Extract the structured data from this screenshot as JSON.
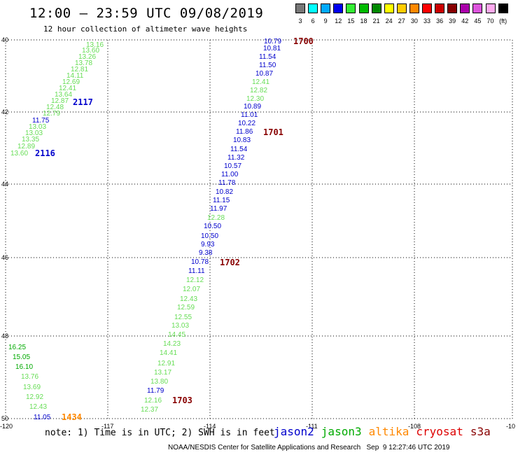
{
  "header": {
    "title": "12:00 – 23:59 UTC 09/08/2019",
    "subtitle": "12 hour collection of altimeter wave heights"
  },
  "color_scale": {
    "unit": "(ft)",
    "bins": [
      {
        "label": "3",
        "color": "#777777"
      },
      {
        "label": "6",
        "color": "#00ffff"
      },
      {
        "label": "9",
        "color": "#00aaff"
      },
      {
        "label": "12",
        "color": "#0000ee"
      },
      {
        "label": "15",
        "color": "#33ee33"
      },
      {
        "label": "18",
        "color": "#00bb00"
      },
      {
        "label": "21",
        "color": "#008800"
      },
      {
        "label": "24",
        "color": "#ffff00"
      },
      {
        "label": "27",
        "color": "#ffcc00"
      },
      {
        "label": "30",
        "color": "#ff8800"
      },
      {
        "label": "33",
        "color": "#ff0000"
      },
      {
        "label": "36",
        "color": "#cc0000"
      },
      {
        "label": "39",
        "color": "#880000"
      },
      {
        "label": "42",
        "color": "#aa00aa"
      },
      {
        "label": "45",
        "color": "#dd55dd"
      },
      {
        "label": "70",
        "color": "#ffaaee"
      },
      {
        "label": "",
        "color": "#000000"
      }
    ]
  },
  "map": {
    "lon_ticks": [
      "-120",
      "-117",
      "-114",
      "-111",
      "-108",
      "-10"
    ],
    "lat_ticks": [
      "40",
      "42",
      "44",
      "46",
      "48",
      "50"
    ]
  },
  "satellite_tracks": {
    "colors": {
      "blue": "#0000cc",
      "green": "#66dd55",
      "dgreen": "#00aa00",
      "red": "#880000",
      "orange": "#ff8800"
    },
    "points": [
      {
        "v": "13.16",
        "c": "green"
      },
      {
        "v": "13.60",
        "c": "green"
      },
      {
        "v": "13.26",
        "c": "green"
      },
      {
        "v": "13.78",
        "c": "green"
      },
      {
        "v": "12.81",
        "c": "green"
      },
      {
        "v": "14.11",
        "c": "green"
      },
      {
        "v": "12.69",
        "c": "green"
      },
      {
        "v": "12.41",
        "c": "green"
      },
      {
        "v": "13.64",
        "c": "green"
      },
      {
        "v": "12.87",
        "c": "green"
      },
      {
        "v": "12.48",
        "c": "green"
      },
      {
        "v": "12.79",
        "c": "green"
      },
      {
        "v": "11.75",
        "c": "blue"
      },
      {
        "v": "13.03",
        "c": "green"
      },
      {
        "v": "13.03",
        "c": "green"
      },
      {
        "v": "13.35",
        "c": "green"
      },
      {
        "v": "12.89",
        "c": "green"
      },
      {
        "v": "13.60",
        "c": "green"
      },
      {
        "v": "10.79",
        "c": "blue"
      },
      {
        "v": "10.81",
        "c": "blue"
      },
      {
        "v": "11.54",
        "c": "blue"
      },
      {
        "v": "11.50",
        "c": "blue"
      },
      {
        "v": "10.87",
        "c": "blue"
      },
      {
        "v": "12.41",
        "c": "green"
      },
      {
        "v": "12.82",
        "c": "green"
      },
      {
        "v": "12.30",
        "c": "green"
      },
      {
        "v": "10.89",
        "c": "blue"
      },
      {
        "v": "11.01",
        "c": "blue"
      },
      {
        "v": "10.22",
        "c": "blue"
      },
      {
        "v": "11.86",
        "c": "blue"
      },
      {
        "v": "10.83",
        "c": "blue"
      },
      {
        "v": "11.54",
        "c": "blue"
      },
      {
        "v": "11.32",
        "c": "blue"
      },
      {
        "v": "10.57",
        "c": "blue"
      },
      {
        "v": "11.00",
        "c": "blue"
      },
      {
        "v": "11.78",
        "c": "blue"
      },
      {
        "v": "10.82",
        "c": "blue"
      },
      {
        "v": "11.15",
        "c": "blue"
      },
      {
        "v": "11.97",
        "c": "blue"
      },
      {
        "v": "12.28",
        "c": "green"
      },
      {
        "v": "10.50",
        "c": "blue"
      },
      {
        "v": "10.50",
        "c": "blue"
      },
      {
        "v": "9.93",
        "c": "blue"
      },
      {
        "v": "9.38",
        "c": "blue"
      },
      {
        "v": "10.78",
        "c": "blue"
      },
      {
        "v": "11.11",
        "c": "blue"
      },
      {
        "v": "12.12",
        "c": "green"
      },
      {
        "v": "12.07",
        "c": "green"
      },
      {
        "v": "12.43",
        "c": "green"
      },
      {
        "v": "12.59",
        "c": "green"
      },
      {
        "v": "12.55",
        "c": "green"
      },
      {
        "v": "13.03",
        "c": "green"
      },
      {
        "v": "14.45",
        "c": "green"
      },
      {
        "v": "14.23",
        "c": "green"
      },
      {
        "v": "14.41",
        "c": "green"
      },
      {
        "v": "12.91",
        "c": "green"
      },
      {
        "v": "13.17",
        "c": "green"
      },
      {
        "v": "13.80",
        "c": "green"
      },
      {
        "v": "11.79",
        "c": "blue"
      },
      {
        "v": "12.16",
        "c": "green"
      },
      {
        "v": "12.37",
        "c": "green"
      },
      {
        "v": "16.25",
        "c": "dgreen"
      },
      {
        "v": "15.05",
        "c": "dgreen"
      },
      {
        "v": "16.10",
        "c": "dgreen"
      },
      {
        "v": "13.76",
        "c": "green"
      },
      {
        "v": "13.69",
        "c": "green"
      },
      {
        "v": "12.92",
        "c": "green"
      },
      {
        "v": "12.43",
        "c": "green"
      },
      {
        "v": "11.05",
        "c": "blue"
      }
    ],
    "time_labels": [
      {
        "t": "2117",
        "c": "blue"
      },
      {
        "t": "2116",
        "c": "blue"
      },
      {
        "t": "1700",
        "c": "red"
      },
      {
        "t": "1701",
        "c": "red"
      },
      {
        "t": "1702",
        "c": "red"
      },
      {
        "t": "1703",
        "c": "red"
      },
      {
        "t": "1434",
        "c": "orange"
      }
    ]
  },
  "footer": {
    "note": "note: 1) Time is in UTC; 2) SWH is in feet",
    "legend": [
      {
        "name": "jason2",
        "color": "#0000cc"
      },
      {
        "name": "jason3",
        "color": "#00aa00"
      },
      {
        "name": "altika",
        "color": "#ff8800"
      },
      {
        "name": "cryosat",
        "color": "#dd0000"
      },
      {
        "name": "s3a",
        "color": "#880000"
      }
    ],
    "credit": "NOAA/NESDIS Center for Satellite Applications and Research   Sep  9 12:27:46 UTC 2019"
  }
}
